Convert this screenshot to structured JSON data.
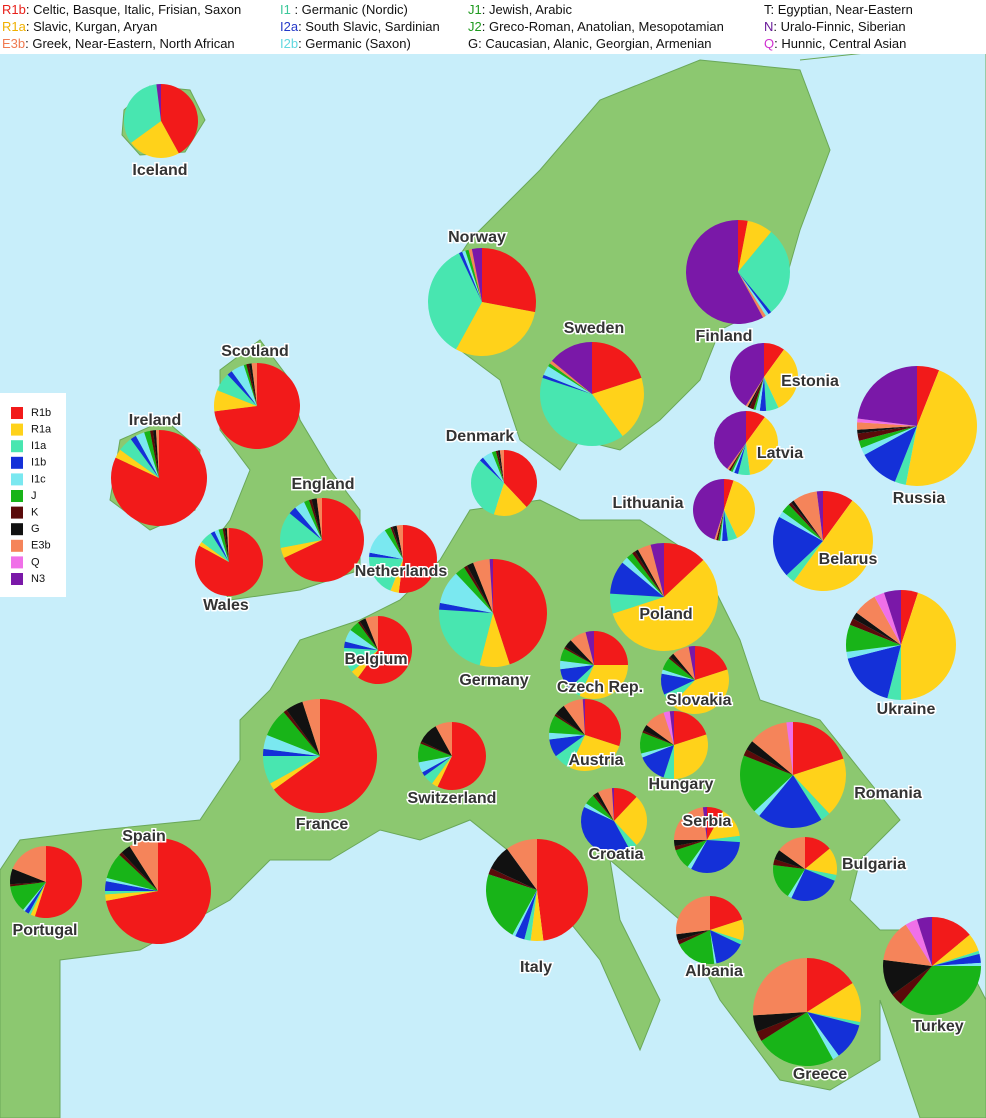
{
  "legend_top": [
    {
      "code": "R1b",
      "color": "#e8201a",
      "text": ": Celtic, Basque, Italic, Frisian, Saxon"
    },
    {
      "code": "R1a",
      "color": "#f0b000",
      "text": ": Slavic, Kurgan, Aryan"
    },
    {
      "code": "E3b",
      "color": "#f07a50",
      "text": ": Greek, Near-Eastern, North African"
    },
    {
      "code": "I1",
      "color": "#3cc89a",
      "text": "   : Germanic (Nordic)"
    },
    {
      "code": "I2a",
      "color": "#2438c8",
      "text": ": South Slavic, Sardinian"
    },
    {
      "code": "I2b",
      "color": "#60d8e0",
      "text": ": Germanic (Saxon)"
    },
    {
      "code": "J1",
      "color": "#1f9a1f",
      "text": ": Jewish, Arabic"
    },
    {
      "code": "J2",
      "color": "#1f9a1f",
      "text": ": Greco-Roman, Anatolian, Mesopotamian"
    },
    {
      "code": "G",
      "color": "#111111",
      "text": ": Caucasian, Alanic, Georgian, Armenian"
    },
    {
      "code": "T",
      "color": "#111111",
      "text": ": Egyptian, Near-Eastern"
    },
    {
      "code": "N",
      "color": "#6a1a9a",
      "text": ": Uralo-Finnic, Siberian"
    },
    {
      "code": "Q",
      "color": "#d030d0",
      "text": ": Hunnic, Central Asian"
    }
  ],
  "legend": {
    "items": [
      {
        "label": "R1b",
        "color": "#f21a1a"
      },
      {
        "label": "R1a",
        "color": "#ffd21a"
      },
      {
        "label": "I1a",
        "color": "#48e6b0"
      },
      {
        "label": "I1b",
        "color": "#1430d8"
      },
      {
        "label": "I1c",
        "color": "#7ae8f0"
      },
      {
        "label": "J",
        "color": "#18b418"
      },
      {
        "label": "K",
        "color": "#5a0a0a"
      },
      {
        "label": "G",
        "color": "#111111"
      },
      {
        "label": "E3b",
        "color": "#f5845a"
      },
      {
        "label": "Q",
        "color": "#f070e8"
      },
      {
        "label": "N3",
        "color": "#7a18a8"
      }
    ]
  },
  "countries": [
    {
      "name": "Iceland",
      "values": [
        42,
        23,
        33,
        0,
        0,
        0,
        0,
        0,
        0,
        0,
        2
      ]
    },
    {
      "name": "Norway",
      "values": [
        28,
        30,
        35,
        1,
        1,
        1,
        0,
        0,
        1,
        0,
        3
      ]
    },
    {
      "name": "Sweden",
      "values": [
        20,
        20,
        40,
        1,
        3,
        1,
        0,
        0,
        1,
        0,
        14
      ]
    },
    {
      "name": "Finland",
      "values": [
        3,
        8,
        28,
        1,
        1,
        0,
        0,
        0,
        1,
        0,
        58
      ]
    },
    {
      "name": "Scotland",
      "values": [
        73,
        8,
        7,
        2,
        5,
        1,
        1,
        1,
        2,
        0,
        0
      ]
    },
    {
      "name": "Ireland",
      "values": [
        82,
        3,
        5,
        2,
        3,
        2,
        1,
        1,
        1,
        0,
        0
      ]
    },
    {
      "name": "England",
      "values": [
        68,
        4,
        14,
        3,
        4,
        2,
        1,
        2,
        2,
        0,
        0
      ]
    },
    {
      "name": "Wales",
      "values": [
        83,
        2,
        6,
        2,
        2,
        2,
        1,
        1,
        1,
        0,
        0
      ]
    },
    {
      "name": "Denmark",
      "values": [
        38,
        17,
        32,
        2,
        5,
        2,
        1,
        1,
        2,
        0,
        0
      ]
    },
    {
      "name": "Netherlands",
      "values": [
        52,
        4,
        20,
        2,
        13,
        3,
        1,
        2,
        3,
        0,
        0
      ]
    },
    {
      "name": "Belgium",
      "values": [
        60,
        4,
        12,
        3,
        6,
        5,
        1,
        3,
        6,
        0,
        0
      ]
    },
    {
      "name": "Germany",
      "values": [
        45,
        9,
        22,
        2,
        10,
        3,
        1,
        2,
        5,
        0,
        1
      ]
    },
    {
      "name": "France",
      "values": [
        65,
        2,
        8,
        2,
        4,
        8,
        1,
        5,
        5,
        0,
        0
      ]
    },
    {
      "name": "Switzerland",
      "values": [
        57,
        3,
        5,
        2,
        5,
        9,
        1,
        10,
        8,
        0,
        0
      ]
    },
    {
      "name": "Spain",
      "values": [
        72,
        2,
        1,
        3,
        1,
        8,
        1,
        3,
        9,
        0,
        0
      ]
    },
    {
      "name": "Portugal",
      "values": [
        55,
        2,
        1,
        2,
        1,
        12,
        1,
        7,
        19,
        0,
        0
      ]
    },
    {
      "name": "Italy",
      "values": [
        48,
        4,
        2,
        3,
        1,
        22,
        2,
        8,
        10,
        0,
        0
      ]
    },
    {
      "name": "Poland",
      "values": [
        13,
        57,
        6,
        10,
        2,
        2,
        1,
        1,
        4,
        0,
        4
      ]
    },
    {
      "name": "Czech Rep.",
      "values": [
        25,
        32,
        6,
        10,
        4,
        6,
        1,
        4,
        8,
        0,
        4
      ]
    },
    {
      "name": "Slovakia",
      "values": [
        20,
        42,
        6,
        10,
        2,
        6,
        1,
        2,
        8,
        0,
        3
      ]
    },
    {
      "name": "Austria",
      "values": [
        30,
        27,
        8,
        8,
        3,
        8,
        1,
        5,
        9,
        0,
        1
      ]
    },
    {
      "name": "Hungary",
      "values": [
        20,
        30,
        5,
        14,
        2,
        10,
        1,
        3,
        10,
        3,
        2
      ]
    },
    {
      "name": "Croatia",
      "values": [
        12,
        26,
        4,
        40,
        2,
        5,
        1,
        2,
        7,
        0,
        1
      ]
    },
    {
      "name": "Serbia",
      "values": [
        8,
        15,
        3,
        32,
        2,
        10,
        2,
        3,
        23,
        0,
        2
      ]
    },
    {
      "name": "Romania",
      "values": [
        20,
        18,
        3,
        20,
        2,
        18,
        2,
        3,
        12,
        2,
        0
      ]
    },
    {
      "name": "Bulgaria",
      "values": [
        14,
        14,
        3,
        26,
        2,
        18,
        3,
        5,
        15,
        0,
        0
      ]
    },
    {
      "name": "Albania",
      "values": [
        20,
        10,
        2,
        15,
        1,
        20,
        2,
        3,
        27,
        0,
        0
      ]
    },
    {
      "name": "Greece",
      "values": [
        16,
        12,
        1,
        11,
        2,
        24,
        3,
        5,
        26,
        0,
        0
      ]
    },
    {
      "name": "Turkey",
      "values": [
        14,
        6,
        1,
        3,
        1,
        36,
        4,
        12,
        14,
        4,
        5
      ]
    },
    {
      "name": "Estonia",
      "values": [
        10,
        33,
        6,
        3,
        2,
        1,
        2,
        1,
        1,
        0,
        41
      ]
    },
    {
      "name": "Latvia",
      "values": [
        10,
        38,
        6,
        2,
        1,
        1,
        1,
        0,
        1,
        0,
        40
      ]
    },
    {
      "name": "Lithuania",
      "values": [
        5,
        38,
        5,
        3,
        1,
        1,
        1,
        0,
        1,
        0,
        45
      ]
    },
    {
      "name": "Belarus",
      "values": [
        10,
        50,
        3,
        20,
        2,
        3,
        1,
        1,
        8,
        0,
        2
      ]
    },
    {
      "name": "Russia",
      "values": [
        6,
        47,
        3,
        11,
        2,
        2,
        2,
        1,
        2,
        1,
        23
      ]
    },
    {
      "name": "Ukraine",
      "values": [
        5,
        45,
        4,
        17,
        2,
        8,
        2,
        2,
        7,
        3,
        5
      ]
    }
  ]
}
